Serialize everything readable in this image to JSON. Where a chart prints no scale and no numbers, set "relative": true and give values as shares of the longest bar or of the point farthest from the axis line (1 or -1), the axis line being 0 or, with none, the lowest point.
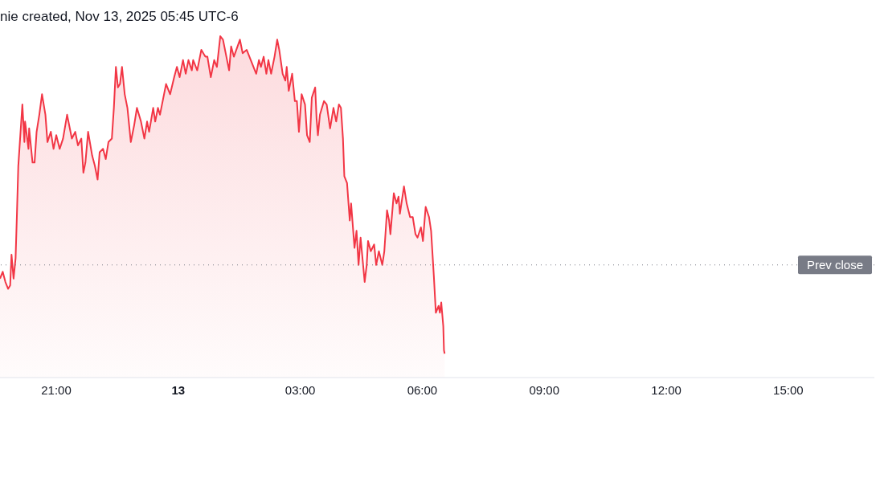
{
  "chart_data": {
    "type": "area",
    "title": "nie created, Nov 13, 2025 05:45 UTC-6",
    "relative": true,
    "color": "#f23645",
    "x": [
      "2025-11-12T19:37",
      "2025-11-12T19:41",
      "2025-11-12T19:45",
      "2025-11-12T19:49",
      "2025-11-12T19:52",
      "2025-11-12T19:54",
      "2025-11-12T19:57",
      "2025-11-12T20:00",
      "2025-11-12T20:02",
      "2025-11-12T20:04",
      "2025-11-12T20:07",
      "2025-11-12T20:10",
      "2025-11-12T20:13",
      "2025-11-12T20:14",
      "2025-11-12T20:19",
      "2025-11-12T20:20",
      "2025-11-12T20:25",
      "2025-11-12T20:28",
      "2025-11-12T20:31",
      "2025-11-12T20:35",
      "2025-11-12T20:39",
      "2025-11-12T20:44",
      "2025-11-12T20:47",
      "2025-11-12T20:52",
      "2025-11-12T20:56",
      "2025-11-12T21:00",
      "2025-11-12T21:05",
      "2025-11-12T21:10",
      "2025-11-12T21:16",
      "2025-11-12T21:23",
      "2025-11-12T21:28",
      "2025-11-12T21:32",
      "2025-11-12T21:37",
      "2025-11-12T21:40",
      "2025-11-12T21:43",
      "2025-11-12T21:47",
      "2025-11-12T21:53",
      "2025-11-12T21:57",
      "2025-11-12T22:01",
      "2025-11-12T22:04",
      "2025-11-12T22:09",
      "2025-11-12T22:13",
      "2025-11-12T22:17",
      "2025-11-12T22:22",
      "2025-11-12T22:25",
      "2025-11-12T22:28",
      "2025-11-12T22:31",
      "2025-11-12T22:34",
      "2025-11-12T22:37",
      "2025-11-12T22:41",
      "2025-11-12T22:45",
      "2025-11-12T22:50",
      "2025-11-12T22:55",
      "2025-11-12T22:59",
      "2025-11-12T23:05",
      "2025-11-12T23:10",
      "2025-11-12T23:14",
      "2025-11-12T23:17",
      "2025-11-12T23:23",
      "2025-11-12T23:26",
      "2025-11-12T23:30",
      "2025-11-12T23:33",
      "2025-11-12T23:38",
      "2025-11-12T23:42",
      "2025-11-12T23:48",
      "2025-11-12T23:54",
      "2025-11-12T23:58",
      "2025-11-13T00:02",
      "2025-11-13T00:07",
      "2025-11-13T00:11",
      "2025-11-13T00:15",
      "2025-11-13T00:20",
      "2025-11-13T00:22",
      "2025-11-13T00:28",
      "2025-11-13T00:34",
      "2025-11-13T00:40",
      "2025-11-13T00:43",
      "2025-11-13T00:48",
      "2025-11-13T00:53",
      "2025-11-13T00:57",
      "2025-11-13T01:02",
      "2025-11-13T01:06",
      "2025-11-13T01:11",
      "2025-11-13T01:15",
      "2025-11-13T01:18",
      "2025-11-13T01:22",
      "2025-11-13T01:31",
      "2025-11-13T01:35",
      "2025-11-13T01:41",
      "2025-11-13T01:47",
      "2025-11-13T01:55",
      "2025-11-13T01:59",
      "2025-11-13T02:02",
      "2025-11-13T02:06",
      "2025-11-13T02:10",
      "2025-11-13T02:13",
      "2025-11-13T02:17",
      "2025-11-13T02:22",
      "2025-11-13T02:26",
      "2025-11-13T02:29",
      "2025-11-13T02:34",
      "2025-11-13T02:38",
      "2025-11-13T02:40",
      "2025-11-13T02:43",
      "2025-11-13T02:48",
      "2025-11-13T02:52",
      "2025-11-13T02:55",
      "2025-11-13T02:58",
      "2025-11-13T03:02",
      "2025-11-13T03:07",
      "2025-11-13T03:10",
      "2025-11-13T03:14",
      "2025-11-13T03:17",
      "2025-11-13T03:22",
      "2025-11-13T03:24",
      "2025-11-13T03:26",
      "2025-11-13T03:29",
      "2025-11-13T03:35",
      "2025-11-13T03:39",
      "2025-11-13T03:44",
      "2025-11-13T03:49",
      "2025-11-13T03:53",
      "2025-11-13T03:57",
      "2025-11-13T04:00",
      "2025-11-13T04:03",
      "2025-11-13T04:05",
      "2025-11-13T04:09",
      "2025-11-13T04:13",
      "2025-11-13T04:15",
      "2025-11-13T04:20",
      "2025-11-13T04:23",
      "2025-11-13T04:26",
      "2025-11-13T04:29",
      "2025-11-13T04:35",
      "2025-11-13T04:38",
      "2025-11-13T04:40",
      "2025-11-13T04:44",
      "2025-11-13T04:49",
      "2025-11-13T04:52",
      "2025-11-13T04:56",
      "2025-11-13T05:01",
      "2025-11-13T05:04",
      "2025-11-13T05:08",
      "2025-11-13T05:11",
      "2025-11-13T05:13",
      "2025-11-13T05:18",
      "2025-11-13T05:22",
      "2025-11-13T05:25",
      "2025-11-13T05:27",
      "2025-11-13T05:33",
      "2025-11-13T05:37",
      "2025-11-13T05:42",
      "2025-11-13T05:46",
      "2025-11-13T05:50",
      "2025-11-13T05:53",
      "2025-11-13T05:58",
      "2025-11-13T06:01",
      "2025-11-13T06:05",
      "2025-11-13T06:10",
      "2025-11-13T06:13",
      "2025-11-13T06:17",
      "2025-11-13T06:20",
      "2025-11-13T06:24",
      "2025-11-13T06:26",
      "2025-11-13T06:28",
      "2025-11-13T06:31",
      "2025-11-13T06:32",
      "2025-11-13T06:33"
    ],
    "values": [
      0.29,
      0.31,
      0.28,
      0.26,
      0.27,
      0.36,
      0.29,
      0.35,
      0.48,
      0.62,
      0.71,
      0.8,
      0.69,
      0.75,
      0.67,
      0.73,
      0.63,
      0.63,
      0.72,
      0.77,
      0.83,
      0.77,
      0.69,
      0.72,
      0.67,
      0.71,
      0.67,
      0.7,
      0.77,
      0.7,
      0.72,
      0.68,
      0.7,
      0.6,
      0.63,
      0.72,
      0.65,
      0.62,
      0.58,
      0.66,
      0.67,
      0.64,
      0.69,
      0.7,
      0.79,
      0.91,
      0.85,
      0.86,
      0.91,
      0.83,
      0.79,
      0.69,
      0.74,
      0.79,
      0.75,
      0.7,
      0.75,
      0.72,
      0.79,
      0.75,
      0.79,
      0.77,
      0.82,
      0.86,
      0.83,
      0.88,
      0.91,
      0.88,
      0.93,
      0.89,
      0.93,
      0.9,
      0.93,
      0.9,
      0.96,
      0.94,
      0.94,
      0.88,
      0.93,
      0.91,
      1,
      0.99,
      0.94,
      0.9,
      0.97,
      0.94,
      0.99,
      0.95,
      0.96,
      0.93,
      0.89,
      0.93,
      0.91,
      0.94,
      0.89,
      0.93,
      0.89,
      0.94,
      0.99,
      0.96,
      0.89,
      0.87,
      0.91,
      0.84,
      0.89,
      0.81,
      0.81,
      0.72,
      0.83,
      0.8,
      0.71,
      0.69,
      0.82,
      0.85,
      0.76,
      0.71,
      0.77,
      0.81,
      0.8,
      0.73,
      0.79,
      0.75,
      0.8,
      0.79,
      0.7,
      0.59,
      0.57,
      0.46,
      0.51,
      0.38,
      0.43,
      0.33,
      0.41,
      0.28,
      0.33,
      0.4,
      0.37,
      0.39,
      0.33,
      0.37,
      0.33,
      0.37,
      0.49,
      0.46,
      0.42,
      0.54,
      0.51,
      0.53,
      0.48,
      0.56,
      0.51,
      0.47,
      0.47,
      0.42,
      0.41,
      0.44,
      0.4,
      0.5,
      0.47,
      0.43,
      0.3,
      0.19,
      0.21,
      0.19,
      0.22,
      0.15,
      0.08,
      0.07
    ],
    "xlim": [
      "2025-11-12T19:37",
      "2025-11-13T17:07"
    ],
    "xticks": [
      {
        "value": "2025-11-12T21:00",
        "label": "21:00"
      },
      {
        "value": "2025-11-13T00:00",
        "label": "13"
      },
      {
        "value": "2025-11-13T03:00",
        "label": "03:00"
      },
      {
        "value": "2025-11-13T06:00",
        "label": "06:00"
      },
      {
        "value": "2025-11-13T09:00",
        "label": "09:00"
      },
      {
        "value": "2025-11-13T12:00",
        "label": "12:00"
      },
      {
        "value": "2025-11-13T15:00",
        "label": "15:00"
      }
    ],
    "ref_lines": [
      {
        "axis": "y",
        "value": 0.33,
        "label": "Prev close",
        "color": "#787b86",
        "line_style": "dotted"
      }
    ]
  }
}
